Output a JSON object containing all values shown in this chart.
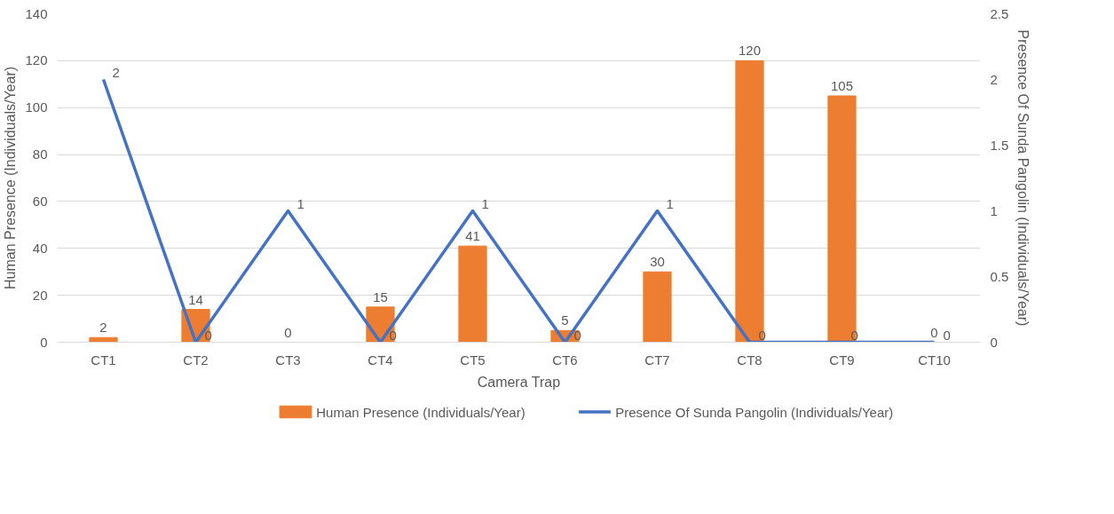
{
  "chart_data": {
    "type": "bar",
    "xlabel": "Camera Trap",
    "ylabel": "Human Presence (Individuals/Year)",
    "y2label": "Presence Of Sunda Pangolin (Individuals/Year)",
    "categories": [
      "CT1",
      "CT2",
      "CT3",
      "CT4",
      "CT5",
      "CT6",
      "CT7",
      "CT8",
      "CT9",
      "CT10"
    ],
    "series": [
      {
        "name": "Human Presence (Individuals/Year)",
        "color": "#ed7d31",
        "values": [
          2,
          14,
          0,
          15,
          41,
          5,
          30,
          120,
          105,
          0
        ]
      },
      {
        "name": "Presence Of Sunda Pangolin (Individuals/Year)",
        "type": "line",
        "axis": "y2",
        "color": "#4472c4",
        "values": [
          2,
          0,
          1,
          0,
          1,
          0,
          1,
          0,
          0,
          0
        ]
      }
    ],
    "ylim": [
      0,
      140
    ],
    "yticks": [
      0,
      20,
      40,
      60,
      80,
      100,
      120,
      140
    ],
    "y2lim": [
      0,
      2.5
    ],
    "y2ticks": [
      0,
      0.5,
      1,
      1.5,
      2,
      2.5
    ],
    "grid": "y",
    "legend": "bottom",
    "data_labels": true
  }
}
